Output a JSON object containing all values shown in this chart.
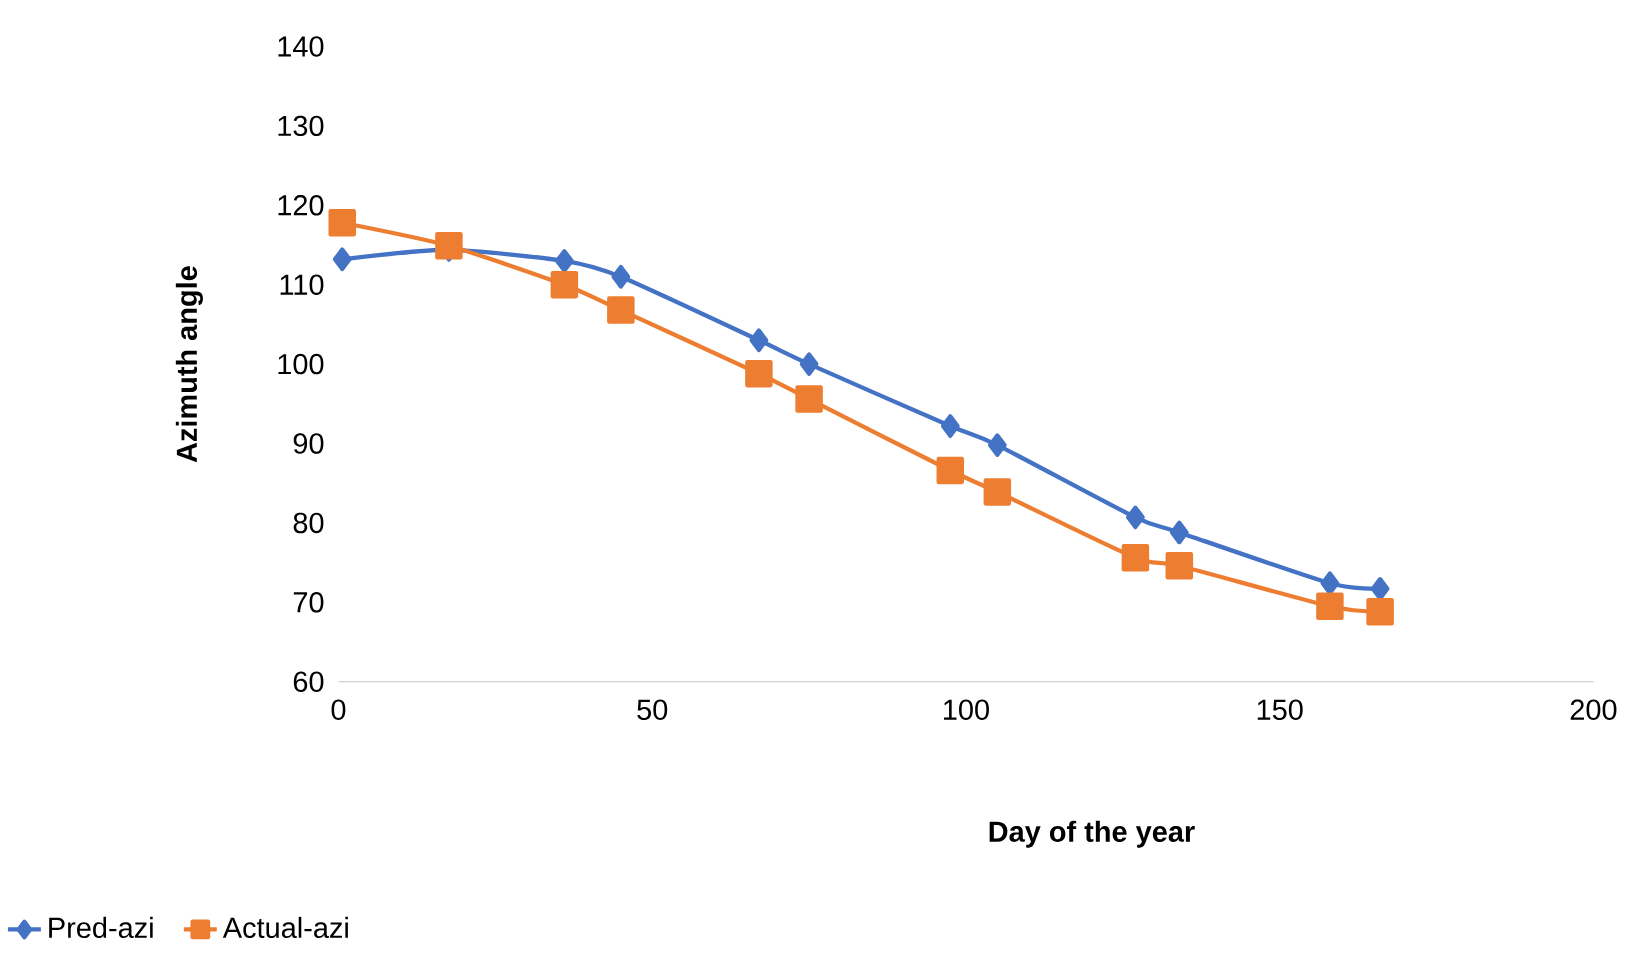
{
  "chart_data": {
    "type": "line",
    "xlabel": "Day of the year",
    "ylabel": "Azimuth angle",
    "xlim": [
      0,
      200
    ],
    "xticks": [
      0,
      50,
      100,
      150,
      200
    ],
    "ylim": [
      60,
      140
    ],
    "yticks": [
      60,
      70,
      80,
      90,
      100,
      110,
      120,
      130,
      140
    ],
    "legend": "bottom left",
    "grid": false,
    "series": [
      {
        "name": "Pred-azi",
        "color": "#4472c4",
        "marker": "diamond",
        "x": [
          0.6,
          17.6,
          36,
          45,
          67,
          75,
          97.5,
          105,
          127,
          134,
          158,
          166
        ],
        "values": [
          113.2,
          114.4,
          113,
          111,
          103,
          100,
          92.2,
          89.8,
          80.7,
          78.8,
          72.4,
          71.7
        ]
      },
      {
        "name": "Actual-azi",
        "color": "#ed7d31",
        "marker": "square",
        "x": [
          0.6,
          17.6,
          36,
          45,
          67,
          75,
          97.5,
          105,
          127,
          134,
          158,
          166
        ],
        "values": [
          117.8,
          114.9,
          110,
          106.8,
          98.8,
          95.6,
          86.6,
          83.9,
          75.6,
          74.6,
          69.5,
          68.8
        ]
      }
    ]
  }
}
